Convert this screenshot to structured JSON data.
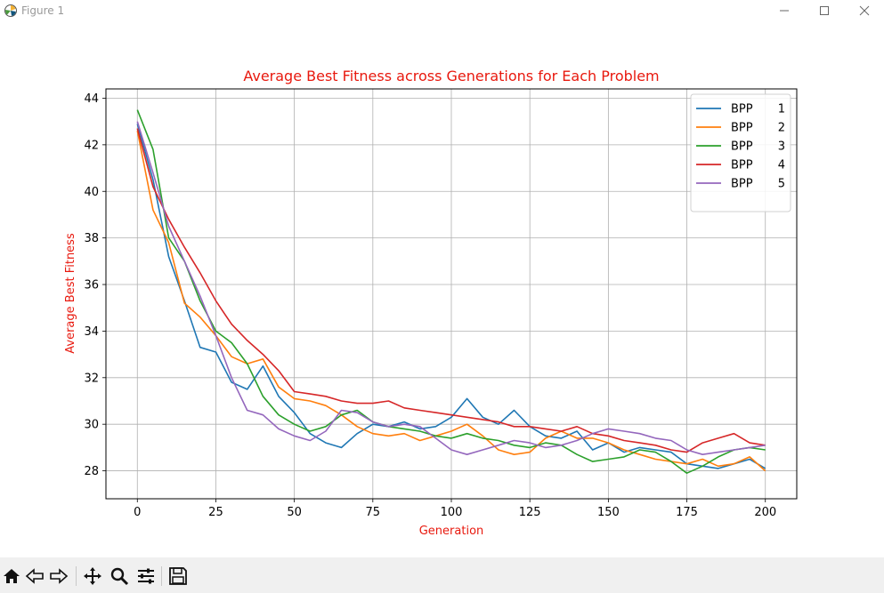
{
  "window": {
    "title": "Figure 1",
    "app_icon": "matplotlib-icon",
    "buttons": [
      "minimize-icon",
      "maximize-icon",
      "close-icon"
    ]
  },
  "toolbar": {
    "buttons": [
      "home-icon",
      "back-arrow-icon",
      "forward-arrow-icon",
      "pan-move-icon",
      "zoom-magnifier-icon",
      "configure-subplots-icon",
      "save-floppy-icon"
    ]
  },
  "colors": {
    "title": "#e8190e",
    "axis_labels": "#e8190e",
    "series": [
      "#1f77b4",
      "#ff7f0e",
      "#2ca02c",
      "#d62728",
      "#9467bd"
    ]
  },
  "chart_data": {
    "type": "line",
    "title": "Average Best Fitness across Generations for Each Problem",
    "xlabel": "Generation",
    "ylabel": "Average Best Fitness",
    "xlim": [
      -10,
      210
    ],
    "ylim": [
      26.8,
      44.4
    ],
    "xticks": [
      0,
      25,
      50,
      75,
      100,
      125,
      150,
      175,
      200
    ],
    "yticks": [
      28,
      30,
      32,
      34,
      36,
      38,
      40,
      42,
      44
    ],
    "grid": true,
    "legend_position": "top-right",
    "x_sample_step": 5,
    "x_note_points": "values at x = 0,5,10,...,200",
    "series": [
      {
        "name": "BPP      1",
        "color": "#1f77b4",
        "values": [
          42.9,
          40.5,
          37.2,
          35.3,
          33.3,
          33.1,
          31.8,
          31.5,
          32.5,
          31.2,
          30.5,
          29.6,
          29.2,
          29.0,
          29.6,
          30.0,
          29.9,
          30.1,
          29.8,
          29.9,
          30.3,
          31.1,
          30.3,
          30.0,
          30.6,
          29.9,
          29.5,
          29.4,
          29.7,
          28.9,
          29.2,
          28.8,
          29.0,
          28.9,
          28.8,
          28.3,
          28.2,
          28.1,
          28.3,
          28.5,
          28.1
        ]
      },
      {
        "name": "BPP      2",
        "color": "#ff7f0e",
        "values": [
          42.6,
          39.2,
          37.8,
          35.2,
          34.6,
          33.8,
          32.9,
          32.6,
          32.8,
          31.6,
          31.1,
          31.0,
          30.8,
          30.4,
          29.9,
          29.6,
          29.5,
          29.6,
          29.3,
          29.5,
          29.7,
          30.0,
          29.5,
          28.9,
          28.7,
          28.8,
          29.4,
          29.7,
          29.4,
          29.4,
          29.2,
          28.9,
          28.7,
          28.5,
          28.4,
          28.3,
          28.5,
          28.2,
          28.3,
          28.6,
          28.0
        ]
      },
      {
        "name": "BPP      3",
        "color": "#2ca02c",
        "values": [
          43.5,
          41.8,
          38.0,
          37.0,
          35.3,
          34.0,
          33.5,
          32.6,
          31.2,
          30.4,
          30.0,
          29.7,
          29.9,
          30.4,
          30.6,
          30.1,
          29.9,
          29.8,
          29.7,
          29.5,
          29.4,
          29.6,
          29.4,
          29.3,
          29.1,
          29.0,
          29.2,
          29.1,
          28.7,
          28.4,
          28.5,
          28.6,
          28.9,
          28.8,
          28.4,
          27.9,
          28.2,
          28.6,
          28.9,
          29.0,
          28.9
        ]
      },
      {
        "name": "BPP      4",
        "color": "#d62728",
        "values": [
          42.7,
          40.2,
          38.8,
          37.6,
          36.5,
          35.3,
          34.3,
          33.6,
          33.0,
          32.3,
          31.4,
          31.3,
          31.2,
          31.0,
          30.9,
          30.9,
          31.0,
          30.7,
          30.6,
          30.5,
          30.4,
          30.3,
          30.2,
          30.1,
          29.9,
          29.9,
          29.8,
          29.7,
          29.9,
          29.6,
          29.5,
          29.3,
          29.2,
          29.1,
          28.9,
          28.8,
          29.2,
          29.4,
          29.6,
          29.2,
          29.1
        ]
      },
      {
        "name": "BPP      5",
        "color": "#9467bd",
        "values": [
          43.0,
          40.8,
          38.5,
          37.0,
          35.5,
          33.8,
          32.0,
          30.6,
          30.4,
          29.8,
          29.5,
          29.3,
          29.7,
          30.6,
          30.5,
          30.1,
          29.9,
          30.0,
          29.9,
          29.4,
          28.9,
          28.7,
          28.9,
          29.1,
          29.3,
          29.2,
          29.0,
          29.1,
          29.3,
          29.6,
          29.8,
          29.7,
          29.6,
          29.4,
          29.3,
          28.9,
          28.7,
          28.8,
          28.9,
          29.0,
          29.1
        ]
      }
    ]
  }
}
